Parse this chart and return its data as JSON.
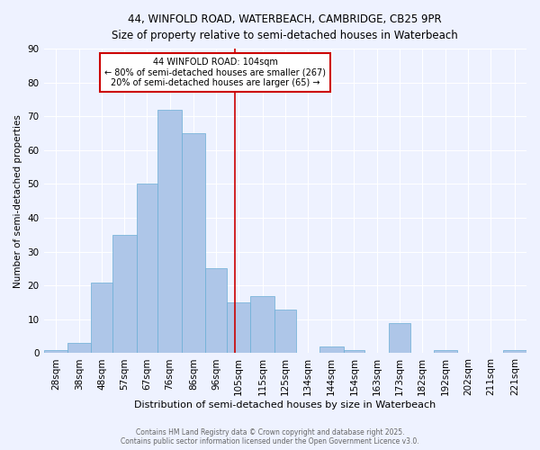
{
  "title_line1": "44, WINFOLD ROAD, WATERBEACH, CAMBRIDGE, CB25 9PR",
  "title_line2": "Size of property relative to semi-detached houses in Waterbeach",
  "xlabel": "Distribution of semi-detached houses by size in Waterbeach",
  "ylabel": "Number of semi-detached properties",
  "bin_labels": [
    "28sqm",
    "38sqm",
    "48sqm",
    "57sqm",
    "67sqm",
    "76sqm",
    "86sqm",
    "96sqm",
    "105sqm",
    "115sqm",
    "125sqm",
    "134sqm",
    "144sqm",
    "154sqm",
    "163sqm",
    "173sqm",
    "182sqm",
    "192sqm",
    "202sqm",
    "211sqm",
    "221sqm"
  ],
  "bin_edges": [
    23.5,
    33.5,
    43.5,
    52.5,
    62.5,
    71.5,
    81.5,
    91.5,
    100.5,
    110.5,
    120.5,
    129.5,
    139.5,
    149.5,
    158.5,
    168.5,
    177.5,
    187.5,
    197.5,
    206.5,
    216.5,
    226.5
  ],
  "bar_heights": [
    1,
    3,
    21,
    35,
    50,
    72,
    65,
    25,
    15,
    17,
    13,
    0,
    2,
    1,
    0,
    9,
    0,
    1,
    0,
    0,
    1
  ],
  "bar_color": "#aec6e8",
  "bar_edge_color": "#6aaed6",
  "vline_x": 104,
  "vline_color": "#cc0000",
  "annotation_title": "44 WINFOLD ROAD: 104sqm",
  "annotation_line1": "← 80% of semi-detached houses are smaller (267)",
  "annotation_line2": "20% of semi-detached houses are larger (65) →",
  "annotation_box_color": "#cc0000",
  "ylim": [
    0,
    90
  ],
  "yticks": [
    0,
    10,
    20,
    30,
    40,
    50,
    60,
    70,
    80,
    90
  ],
  "background_color": "#eef2ff",
  "grid_color": "#ffffff",
  "footnote_line1": "Contains HM Land Registry data © Crown copyright and database right 2025.",
  "footnote_line2": "Contains public sector information licensed under the Open Government Licence v3.0."
}
